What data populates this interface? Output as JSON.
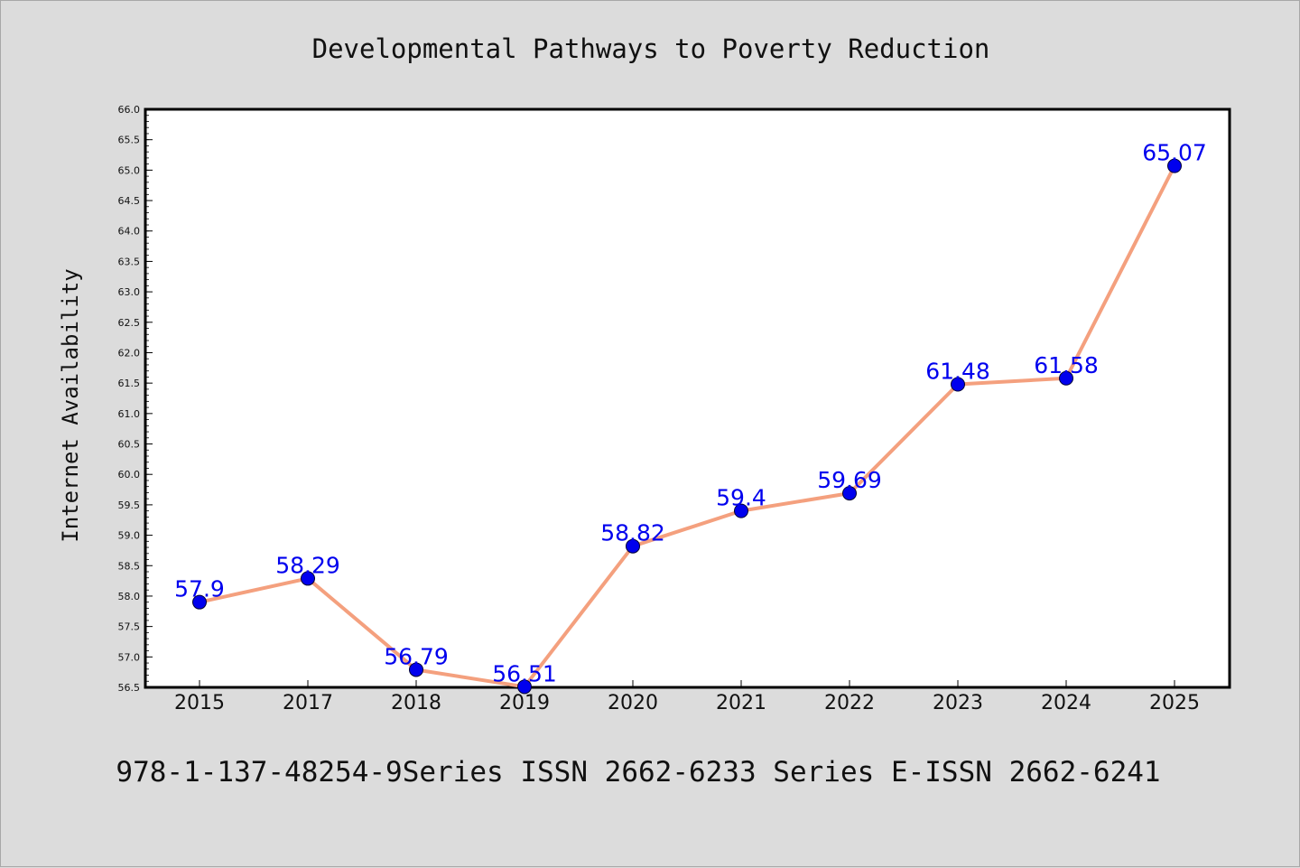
{
  "chart_data": {
    "type": "line",
    "title": "Developmental Pathways to Poverty Reduction",
    "ylabel": "Internet Availability",
    "xlabel": "",
    "categories": [
      "2015",
      "2017",
      "2018",
      "2019",
      "2020",
      "2021",
      "2022",
      "2023",
      "2024",
      "2025"
    ],
    "series": [
      {
        "values": [
          57.9,
          58.29,
          56.79,
          56.51,
          58.82,
          59.4,
          59.69,
          61.48,
          61.58,
          65.07
        ]
      }
    ],
    "data_labels": [
      "57.9",
      "58.29",
      "56.79",
      "56.51",
      "58.82",
      "59.4",
      "59.69",
      "61.48",
      "61.58",
      "65.07"
    ],
    "ylim": [
      56.5,
      66.0
    ],
    "yticks": [
      "56.5",
      "57.0",
      "57.5",
      "58.0",
      "58.5",
      "59.0",
      "59.5",
      "60.0",
      "60.5",
      "61.0",
      "61.5",
      "62.0",
      "62.5",
      "63.0",
      "63.5",
      "64.0",
      "64.5",
      "65.0",
      "65.5",
      "66.0"
    ],
    "grid": false,
    "colors": {
      "line": "#f4a07e",
      "marker": "#0000ee",
      "label": "#0000ee",
      "background": "#dcdcdc",
      "plot_bg": "#ffffff"
    }
  },
  "footer": {
    "text": "978-1-137-48254-9Series ISSN 2662-6233 Series E-ISSN 2662-6241"
  }
}
